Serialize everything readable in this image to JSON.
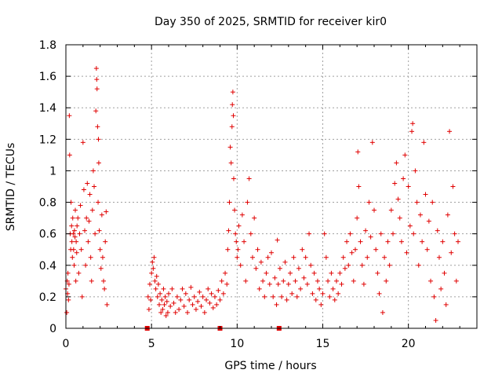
{
  "chart_data": {
    "type": "scatter",
    "title": "Day 350 of 2025, SRMTID for receiver kir0",
    "xlabel": "GPS time / hours",
    "ylabel": "SRMTID / TECUs",
    "xlim": [
      0,
      24
    ],
    "ylim": [
      0,
      1.8
    ],
    "xticks": [
      0,
      5,
      10,
      15,
      20
    ],
    "xtick_labels": [
      "0",
      "5",
      "10",
      "15",
      "20"
    ],
    "yticks": [
      0,
      0.2,
      0.4,
      0.6,
      0.8,
      1.0,
      1.2,
      1.4,
      1.6,
      1.8
    ],
    "ytick_labels": [
      "0",
      "0.2",
      "0.4",
      "0.6",
      "0.8",
      "1",
      "1.2",
      "1.4",
      "1.6",
      "1.8"
    ],
    "grid": true,
    "marker": "plus",
    "color": "#e00000",
    "series": [
      {
        "name": "SRMTID",
        "points": [
          [
            0.0,
            0.25
          ],
          [
            0.05,
            0.1
          ],
          [
            0.08,
            0.3
          ],
          [
            0.1,
            0.22
          ],
          [
            0.12,
            0.35
          ],
          [
            0.15,
            0.18
          ],
          [
            0.18,
            0.28
          ],
          [
            0.2,
            1.35
          ],
          [
            0.22,
            1.1
          ],
          [
            0.25,
            0.6
          ],
          [
            0.28,
            0.5
          ],
          [
            0.3,
            0.8
          ],
          [
            0.33,
            0.65
          ],
          [
            0.35,
            0.55
          ],
          [
            0.38,
            0.45
          ],
          [
            0.4,
            0.7
          ],
          [
            0.43,
            0.6
          ],
          [
            0.45,
            0.5
          ],
          [
            0.48,
            0.4
          ],
          [
            0.5,
            0.62
          ],
          [
            0.53,
            0.58
          ],
          [
            0.55,
            0.75
          ],
          [
            0.58,
            0.3
          ],
          [
            0.6,
            0.55
          ],
          [
            0.63,
            0.48
          ],
          [
            0.65,
            0.65
          ],
          [
            0.7,
            0.7
          ],
          [
            0.75,
            0.35
          ],
          [
            0.8,
            0.6
          ],
          [
            0.85,
            0.78
          ],
          [
            0.9,
            0.5
          ],
          [
            0.95,
            0.2
          ],
          [
            1.0,
            1.18
          ],
          [
            1.05,
            0.88
          ],
          [
            1.1,
            0.62
          ],
          [
            1.15,
            0.4
          ],
          [
            1.2,
            0.7
          ],
          [
            1.25,
            0.92
          ],
          [
            1.3,
            0.55
          ],
          [
            1.35,
            0.68
          ],
          [
            1.4,
            0.85
          ],
          [
            1.45,
            0.45
          ],
          [
            1.5,
            0.3
          ],
          [
            1.55,
            0.75
          ],
          [
            1.6,
            1.0
          ],
          [
            1.65,
            0.9
          ],
          [
            1.7,
            0.6
          ],
          [
            1.75,
            1.38
          ],
          [
            1.78,
            1.65
          ],
          [
            1.8,
            1.58
          ],
          [
            1.82,
            1.52
          ],
          [
            1.85,
            1.28
          ],
          [
            1.88,
            0.8
          ],
          [
            1.9,
            1.2
          ],
          [
            1.92,
            1.05
          ],
          [
            1.95,
            0.62
          ],
          [
            2.0,
            0.5
          ],
          [
            2.05,
            0.38
          ],
          [
            2.1,
            0.72
          ],
          [
            2.15,
            0.45
          ],
          [
            2.2,
            0.3
          ],
          [
            2.25,
            0.25
          ],
          [
            2.3,
            0.55
          ],
          [
            2.35,
            0.74
          ],
          [
            2.4,
            0.15
          ],
          [
            4.8,
            0.2
          ],
          [
            4.85,
            0.12
          ],
          [
            4.9,
            0.28
          ],
          [
            4.95,
            0.18
          ],
          [
            5.0,
            0.35
          ],
          [
            5.05,
            0.42
          ],
          [
            5.1,
            0.38
          ],
          [
            5.15,
            0.45
          ],
          [
            5.2,
            0.3
          ],
          [
            5.25,
            0.25
          ],
          [
            5.3,
            0.33
          ],
          [
            5.35,
            0.2
          ],
          [
            5.4,
            0.28
          ],
          [
            5.45,
            0.15
          ],
          [
            5.5,
            0.22
          ],
          [
            5.55,
            0.1
          ],
          [
            5.6,
            0.18
          ],
          [
            5.65,
            0.12
          ],
          [
            5.7,
            0.25
          ],
          [
            5.75,
            0.15
          ],
          [
            5.8,
            0.2
          ],
          [
            5.85,
            0.08
          ],
          [
            5.9,
            0.17
          ],
          [
            5.95,
            0.1
          ],
          [
            6.0,
            0.22
          ],
          [
            6.1,
            0.14
          ],
          [
            6.2,
            0.25
          ],
          [
            6.3,
            0.16
          ],
          [
            6.4,
            0.1
          ],
          [
            6.5,
            0.2
          ],
          [
            6.6,
            0.12
          ],
          [
            6.7,
            0.18
          ],
          [
            6.8,
            0.25
          ],
          [
            6.9,
            0.14
          ],
          [
            7.0,
            0.22
          ],
          [
            7.1,
            0.1
          ],
          [
            7.2,
            0.18
          ],
          [
            7.3,
            0.26
          ],
          [
            7.4,
            0.15
          ],
          [
            7.5,
            0.2
          ],
          [
            7.6,
            0.12
          ],
          [
            7.7,
            0.17
          ],
          [
            7.8,
            0.23
          ],
          [
            7.9,
            0.14
          ],
          [
            8.0,
            0.2
          ],
          [
            8.1,
            0.1
          ],
          [
            8.2,
            0.18
          ],
          [
            8.3,
            0.25
          ],
          [
            8.4,
            0.16
          ],
          [
            8.5,
            0.22
          ],
          [
            8.6,
            0.13
          ],
          [
            8.7,
            0.2
          ],
          [
            8.8,
            0.15
          ],
          [
            8.9,
            0.24
          ],
          [
            9.0,
            0.18
          ],
          [
            9.1,
            0.3
          ],
          [
            9.2,
            0.22
          ],
          [
            9.3,
            0.35
          ],
          [
            9.4,
            0.28
          ],
          [
            9.45,
            0.5
          ],
          [
            9.5,
            0.62
          ],
          [
            9.55,
            0.8
          ],
          [
            9.6,
            1.15
          ],
          [
            9.65,
            1.05
          ],
          [
            9.7,
            1.28
          ],
          [
            9.72,
            1.42
          ],
          [
            9.75,
            1.5
          ],
          [
            9.78,
            1.35
          ],
          [
            9.8,
            0.95
          ],
          [
            9.85,
            0.75
          ],
          [
            9.9,
            0.6
          ],
          [
            9.95,
            0.55
          ],
          [
            10.0,
            0.45
          ],
          [
            10.05,
            0.5
          ],
          [
            10.1,
            0.65
          ],
          [
            10.2,
            0.4
          ],
          [
            10.3,
            0.72
          ],
          [
            10.4,
            0.55
          ],
          [
            10.5,
            0.3
          ],
          [
            10.6,
            0.8
          ],
          [
            10.7,
            0.95
          ],
          [
            10.8,
            0.6
          ],
          [
            10.9,
            0.45
          ],
          [
            11.0,
            0.7
          ],
          [
            11.1,
            0.38
          ],
          [
            11.2,
            0.5
          ],
          [
            11.3,
            0.25
          ],
          [
            11.4,
            0.42
          ],
          [
            11.5,
            0.3
          ],
          [
            11.6,
            0.2
          ],
          [
            11.7,
            0.35
          ],
          [
            11.8,
            0.45
          ],
          [
            11.9,
            0.28
          ],
          [
            12.0,
            0.48
          ],
          [
            12.1,
            0.2
          ],
          [
            12.2,
            0.32
          ],
          [
            12.3,
            0.15
          ],
          [
            12.35,
            0.56
          ],
          [
            12.4,
            0.28
          ],
          [
            12.5,
            0.38
          ],
          [
            12.6,
            0.2
          ],
          [
            12.7,
            0.3
          ],
          [
            12.8,
            0.42
          ],
          [
            12.9,
            0.18
          ],
          [
            13.0,
            0.28
          ],
          [
            13.1,
            0.35
          ],
          [
            13.2,
            0.22
          ],
          [
            13.3,
            0.45
          ],
          [
            13.4,
            0.3
          ],
          [
            13.5,
            0.2
          ],
          [
            13.6,
            0.38
          ],
          [
            13.7,
            0.25
          ],
          [
            13.8,
            0.5
          ],
          [
            13.9,
            0.32
          ],
          [
            14.0,
            0.45
          ],
          [
            14.1,
            0.28
          ],
          [
            14.2,
            0.6
          ],
          [
            14.3,
            0.4
          ],
          [
            14.4,
            0.22
          ],
          [
            14.5,
            0.35
          ],
          [
            14.6,
            0.18
          ],
          [
            14.7,
            0.3
          ],
          [
            14.8,
            0.25
          ],
          [
            14.9,
            0.15
          ],
          [
            15.0,
            0.22
          ],
          [
            15.1,
            0.6
          ],
          [
            15.2,
            0.45
          ],
          [
            15.3,
            0.3
          ],
          [
            15.4,
            0.2
          ],
          [
            15.5,
            0.35
          ],
          [
            15.6,
            0.25
          ],
          [
            15.7,
            0.18
          ],
          [
            15.8,
            0.3
          ],
          [
            15.9,
            0.22
          ],
          [
            16.0,
            0.35
          ],
          [
            16.1,
            0.28
          ],
          [
            16.2,
            0.45
          ],
          [
            16.3,
            0.38
          ],
          [
            16.4,
            0.55
          ],
          [
            16.5,
            0.4
          ],
          [
            16.6,
            0.6
          ],
          [
            16.7,
            0.48
          ],
          [
            16.8,
            0.3
          ],
          [
            16.9,
            0.5
          ],
          [
            17.0,
            0.7
          ],
          [
            17.05,
            1.12
          ],
          [
            17.1,
            0.9
          ],
          [
            17.2,
            0.55
          ],
          [
            17.3,
            0.4
          ],
          [
            17.4,
            0.28
          ],
          [
            17.5,
            0.62
          ],
          [
            17.6,
            0.45
          ],
          [
            17.7,
            0.8
          ],
          [
            17.8,
            0.58
          ],
          [
            17.9,
            1.18
          ],
          [
            18.0,
            0.75
          ],
          [
            18.1,
            0.5
          ],
          [
            18.2,
            0.35
          ],
          [
            18.3,
            0.22
          ],
          [
            18.4,
            0.6
          ],
          [
            18.5,
            0.1
          ],
          [
            18.6,
            0.45
          ],
          [
            18.7,
            0.3
          ],
          [
            18.8,
            0.55
          ],
          [
            18.9,
            0.4
          ],
          [
            19.0,
            0.75
          ],
          [
            19.1,
            0.6
          ],
          [
            19.2,
            0.92
          ],
          [
            19.3,
            1.05
          ],
          [
            19.4,
            0.82
          ],
          [
            19.5,
            0.7
          ],
          [
            19.6,
            0.55
          ],
          [
            19.7,
            0.95
          ],
          [
            19.8,
            1.1
          ],
          [
            19.9,
            0.48
          ],
          [
            20.0,
            0.9
          ],
          [
            20.1,
            0.65
          ],
          [
            20.2,
            1.25
          ],
          [
            20.25,
            1.3
          ],
          [
            20.3,
            0.6
          ],
          [
            20.4,
            1.0
          ],
          [
            20.5,
            0.8
          ],
          [
            20.6,
            0.4
          ],
          [
            20.7,
            0.72
          ],
          [
            20.8,
            0.55
          ],
          [
            20.9,
            1.18
          ],
          [
            21.0,
            0.85
          ],
          [
            21.1,
            0.5
          ],
          [
            21.2,
            0.68
          ],
          [
            21.3,
            0.3
          ],
          [
            21.4,
            0.8
          ],
          [
            21.5,
            0.2
          ],
          [
            21.6,
            0.05
          ],
          [
            21.7,
            0.62
          ],
          [
            21.8,
            0.45
          ],
          [
            21.9,
            0.25
          ],
          [
            22.0,
            0.55
          ],
          [
            22.1,
            0.35
          ],
          [
            22.2,
            0.15
          ],
          [
            22.3,
            0.72
          ],
          [
            22.4,
            1.25
          ],
          [
            22.5,
            0.48
          ],
          [
            22.6,
            0.9
          ],
          [
            22.7,
            0.6
          ],
          [
            22.8,
            0.3
          ],
          [
            22.9,
            0.55
          ]
        ]
      }
    ],
    "flags": [
      {
        "x": 4.75,
        "y": 0
      },
      {
        "x": 9.0,
        "y": 0
      },
      {
        "x": 12.45,
        "y": 0
      }
    ]
  }
}
